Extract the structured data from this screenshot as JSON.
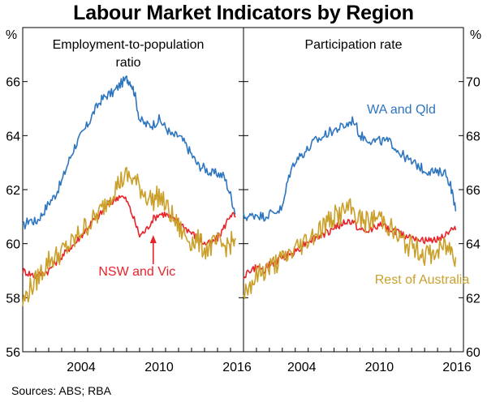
{
  "title": "Labour Market Indicators by Region",
  "source": "Sources:   ABS; RBA",
  "colors": {
    "blue": "#2e75c0",
    "red": "#e8232a",
    "gold": "#caa02a"
  },
  "chart_data": [
    {
      "type": "line",
      "title": "Employment-to-population\nratio",
      "ylabel": "%",
      "ylim": [
        56,
        68
      ],
      "yticks": [
        56,
        58,
        60,
        62,
        64,
        66
      ],
      "xlim": [
        2000,
        2017
      ],
      "xticks": [
        2004,
        2010,
        2016
      ],
      "grid": false,
      "annotations": [
        {
          "text": "NSW and Vic",
          "x": 2008.8,
          "y": 59.0
        }
      ],
      "series": [
        {
          "name": "",
          "color": "blue",
          "x": [
            2000.0,
            2000.5,
            2001.0,
            2001.5,
            2002.0,
            2002.5,
            2003.0,
            2003.5,
            2004.0,
            2004.5,
            2005.0,
            2005.5,
            2006.0,
            2006.5,
            2007.0,
            2007.5,
            2008.0,
            2008.3,
            2008.6,
            2009.0,
            2009.5,
            2010.0,
            2010.5,
            2011.0,
            2011.5,
            2012.0,
            2012.5,
            2013.0,
            2013.5,
            2014.0,
            2014.5,
            2015.0,
            2015.5,
            2016.0,
            2016.4
          ],
          "values": [
            60.6,
            60.9,
            60.8,
            61.1,
            61.5,
            61.8,
            62.3,
            63.0,
            63.6,
            64.0,
            64.4,
            64.9,
            65.3,
            65.5,
            65.6,
            65.9,
            66.1,
            66.0,
            65.6,
            64.6,
            64.4,
            64.4,
            64.6,
            64.3,
            64.0,
            64.0,
            63.7,
            63.3,
            62.9,
            62.8,
            62.6,
            62.6,
            62.5,
            61.8,
            61.1
          ]
        },
        {
          "name": "NSW and Vic",
          "color": "red",
          "x": [
            2000.0,
            2000.5,
            2001.0,
            2001.5,
            2002.0,
            2002.5,
            2003.0,
            2003.5,
            2004.0,
            2004.5,
            2005.0,
            2005.5,
            2006.0,
            2006.5,
            2007.0,
            2007.5,
            2008.0,
            2008.5,
            2009.0,
            2009.5,
            2010.0,
            2010.5,
            2011.0,
            2011.5,
            2012.0,
            2012.5,
            2013.0,
            2013.5,
            2014.0,
            2014.5,
            2015.0,
            2015.5,
            2016.0,
            2016.4
          ],
          "values": [
            59.0,
            58.9,
            58.8,
            58.9,
            59.0,
            59.3,
            59.5,
            59.8,
            60.0,
            60.3,
            60.6,
            60.9,
            61.1,
            61.4,
            61.6,
            61.8,
            61.6,
            61.0,
            60.3,
            60.5,
            60.9,
            61.1,
            61.1,
            60.9,
            60.8,
            60.6,
            60.4,
            60.2,
            60.0,
            60.0,
            60.2,
            60.6,
            61.1,
            61.0
          ]
        },
        {
          "name": "",
          "color": "gold",
          "x": [
            2000.0,
            2000.5,
            2001.0,
            2001.5,
            2002.0,
            2002.5,
            2003.0,
            2003.5,
            2004.0,
            2004.5,
            2005.0,
            2005.5,
            2006.0,
            2006.5,
            2007.0,
            2007.5,
            2008.0,
            2008.5,
            2009.0,
            2009.5,
            2010.0,
            2010.5,
            2011.0,
            2011.5,
            2012.0,
            2012.5,
            2013.0,
            2013.5,
            2014.0,
            2014.5,
            2015.0,
            2015.5,
            2016.0,
            2016.4
          ],
          "values": [
            57.8,
            58.3,
            58.6,
            59.0,
            59.4,
            59.5,
            59.7,
            59.9,
            60.1,
            60.5,
            60.7,
            60.9,
            61.2,
            61.6,
            62.0,
            62.3,
            62.5,
            62.4,
            62.1,
            61.8,
            61.6,
            61.8,
            61.4,
            61.0,
            60.6,
            60.3,
            60.1,
            60.1,
            59.8,
            59.9,
            60.0,
            59.9,
            60.0,
            60.2
          ]
        }
      ]
    },
    {
      "type": "line",
      "title": "Participation rate",
      "ylabel": "%",
      "ylim": [
        60,
        72
      ],
      "yticks": [
        60,
        62,
        64,
        66,
        68,
        70
      ],
      "xlim": [
        2000,
        2017
      ],
      "xticks": [
        2004,
        2010,
        2016
      ],
      "grid": false,
      "annotations": [
        {
          "text": "WA and Qld",
          "x": 2012.2,
          "y": 69.0
        },
        {
          "text": "Rest of Australia",
          "x": 2013.8,
          "y": 62.7
        }
      ],
      "series": [
        {
          "name": "WA and Qld",
          "color": "blue",
          "x": [
            2000.0,
            2000.5,
            2001.0,
            2001.5,
            2002.0,
            2002.5,
            2003.0,
            2003.5,
            2004.0,
            2004.5,
            2005.0,
            2005.5,
            2006.0,
            2006.5,
            2007.0,
            2007.5,
            2008.0,
            2008.5,
            2009.0,
            2009.5,
            2010.0,
            2010.5,
            2011.0,
            2011.5,
            2012.0,
            2012.5,
            2013.0,
            2013.5,
            2014.0,
            2014.5,
            2015.0,
            2015.5,
            2016.0,
            2016.4
          ],
          "values": [
            65.0,
            65.0,
            65.1,
            65.0,
            65.1,
            65.2,
            65.3,
            66.5,
            67.1,
            67.3,
            67.5,
            67.8,
            67.9,
            68.1,
            68.2,
            68.3,
            68.4,
            68.6,
            68.0,
            67.9,
            67.8,
            67.8,
            67.8,
            67.7,
            67.4,
            67.2,
            67.0,
            66.9,
            66.7,
            66.7,
            66.6,
            66.7,
            66.2,
            65.2
          ]
        },
        {
          "name": "",
          "color": "red",
          "x": [
            2000.0,
            2000.5,
            2001.0,
            2001.5,
            2002.0,
            2002.5,
            2003.0,
            2003.5,
            2004.0,
            2004.5,
            2005.0,
            2005.5,
            2006.0,
            2006.5,
            2007.0,
            2007.5,
            2008.0,
            2008.5,
            2009.0,
            2009.5,
            2010.0,
            2010.5,
            2011.0,
            2011.5,
            2012.0,
            2012.5,
            2013.0,
            2013.5,
            2014.0,
            2014.5,
            2015.0,
            2015.5,
            2016.0,
            2016.4
          ],
          "values": [
            62.8,
            63.0,
            63.1,
            63.0,
            63.2,
            63.3,
            63.5,
            63.6,
            63.7,
            63.9,
            64.1,
            64.2,
            64.3,
            64.4,
            64.6,
            64.7,
            64.8,
            64.8,
            64.5,
            64.4,
            64.6,
            64.7,
            64.6,
            64.5,
            64.4,
            64.3,
            64.3,
            64.2,
            64.1,
            64.1,
            64.2,
            64.3,
            64.5,
            64.5
          ]
        },
        {
          "name": "Rest of Australia",
          "color": "gold",
          "x": [
            2000.0,
            2000.5,
            2001.0,
            2001.5,
            2002.0,
            2002.5,
            2003.0,
            2003.5,
            2004.0,
            2004.5,
            2005.0,
            2005.5,
            2006.0,
            2006.5,
            2007.0,
            2007.5,
            2008.0,
            2008.5,
            2009.0,
            2009.5,
            2010.0,
            2010.5,
            2011.0,
            2011.5,
            2012.0,
            2012.5,
            2013.0,
            2013.5,
            2014.0,
            2014.5,
            2015.0,
            2015.5,
            2016.0,
            2016.4
          ],
          "values": [
            62.2,
            62.5,
            62.8,
            63.0,
            63.1,
            63.3,
            63.4,
            63.6,
            63.8,
            64.0,
            64.2,
            64.4,
            64.6,
            64.8,
            65.0,
            65.1,
            65.3,
            65.2,
            64.9,
            64.8,
            64.9,
            65.0,
            64.8,
            64.5,
            64.2,
            64.0,
            63.9,
            63.8,
            63.6,
            63.6,
            63.7,
            63.9,
            63.8,
            63.5
          ]
        }
      ]
    }
  ]
}
